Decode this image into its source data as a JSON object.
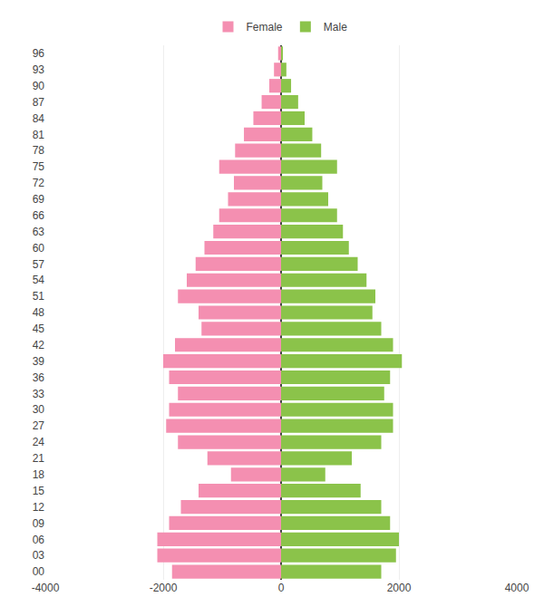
{
  "chart_data": {
    "type": "bar",
    "orientation": "horizontal",
    "categories": [
      "00",
      "03",
      "06",
      "09",
      "12",
      "15",
      "18",
      "21",
      "24",
      "27",
      "30",
      "33",
      "36",
      "39",
      "42",
      "45",
      "48",
      "51",
      "54",
      "57",
      "60",
      "63",
      "66",
      "69",
      "72",
      "75",
      "78",
      "81",
      "84",
      "87",
      "90",
      "93",
      "96"
    ],
    "series": [
      {
        "name": "Female",
        "color": "#f48fb1",
        "values": [
          -1850,
          -2100,
          -2100,
          -1900,
          -1700,
          -1400,
          -850,
          -1250,
          -1750,
          -1950,
          -1900,
          -1750,
          -1900,
          -2000,
          -1800,
          -1350,
          -1400,
          -1750,
          -1600,
          -1450,
          -1300,
          -1150,
          -1050,
          -900,
          -800,
          -1050,
          -780,
          -630,
          -470,
          -330,
          -200,
          -120,
          -50
        ]
      },
      {
        "name": "Male",
        "color": "#8bc34a",
        "values": [
          1700,
          1950,
          2000,
          1850,
          1700,
          1350,
          750,
          1200,
          1700,
          1900,
          1900,
          1750,
          1850,
          2050,
          1900,
          1700,
          1550,
          1600,
          1450,
          1300,
          1150,
          1050,
          950,
          800,
          700,
          950,
          680,
          530,
          400,
          290,
          170,
          90,
          30
        ]
      }
    ],
    "xlim": [
      -4000,
      4000
    ],
    "xticks": [
      -4000,
      -2000,
      0,
      2000,
      4000
    ],
    "grid": true,
    "legend": "top"
  }
}
